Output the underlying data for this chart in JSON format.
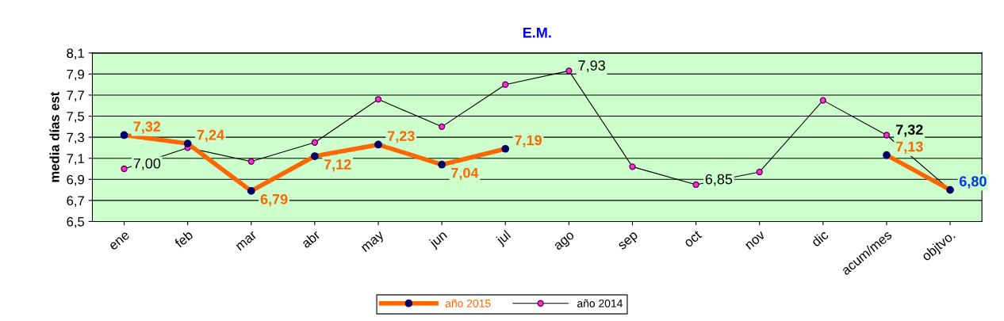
{
  "chart_data": {
    "type": "line",
    "title": "E.M.",
    "ylabel": "media días est",
    "categories": [
      "ene",
      "feb",
      "mar",
      "abr",
      "may",
      "jun",
      "jul",
      "ago",
      "sep",
      "oct",
      "nov",
      "dic",
      "acum/mes",
      "objtvo."
    ],
    "series": [
      {
        "name": "año 2015",
        "color": "#ff6600",
        "values": [
          7.32,
          7.24,
          6.79,
          7.12,
          7.23,
          7.04,
          7.19,
          null,
          null,
          null,
          null,
          null,
          7.13,
          6.8
        ],
        "value_labels": [
          "7,32",
          "7,24",
          "6,79",
          "7,12",
          "7,23",
          "7,04",
          "7,19",
          null,
          null,
          null,
          null,
          null,
          "7,13",
          "6,80"
        ]
      },
      {
        "name": "año 2014",
        "color": "#000000",
        "values": [
          7.0,
          7.2,
          7.07,
          7.25,
          7.66,
          7.4,
          7.8,
          7.93,
          7.02,
          6.85,
          6.97,
          7.65,
          7.32,
          6.8
        ],
        "value_labels": [
          "7,00",
          null,
          null,
          null,
          null,
          null,
          null,
          "7,93",
          null,
          "6,85",
          null,
          null,
          "7,32",
          null
        ]
      }
    ],
    "ylim": [
      6.5,
      8.1
    ],
    "yticks": [
      {
        "value": 6.5,
        "label": "6,5"
      },
      {
        "value": 6.7,
        "label": "6,7"
      },
      {
        "value": 6.9,
        "label": "6,9"
      },
      {
        "value": 7.1,
        "label": "7,1"
      },
      {
        "value": 7.3,
        "label": "7,3"
      },
      {
        "value": 7.5,
        "label": "7,5"
      },
      {
        "value": 7.7,
        "label": "7,7"
      },
      {
        "value": 7.9,
        "label": "7,9"
      },
      {
        "value": 8.1,
        "label": "8,1"
      }
    ],
    "grid": "y",
    "legend": "bottom",
    "marker": "circle",
    "line_style": "solid"
  }
}
